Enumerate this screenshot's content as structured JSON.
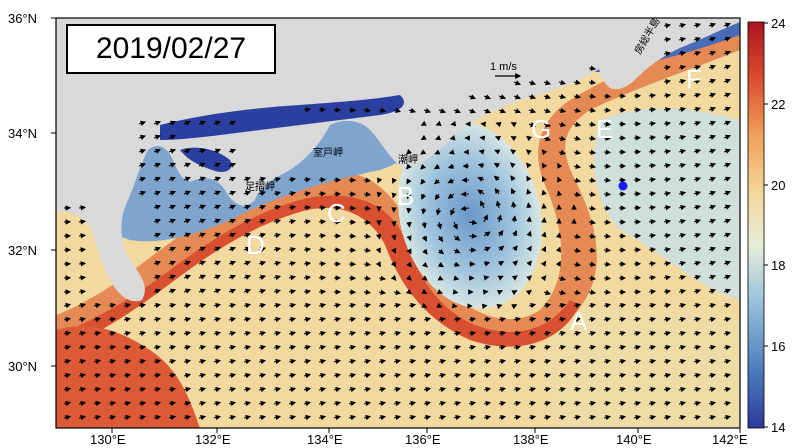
{
  "date": "2019/02/27",
  "axes": {
    "lon_ticks": [
      "130°E",
      "132°E",
      "134°E",
      "136°E",
      "138°E",
      "140°E",
      "142°E"
    ],
    "lat_ticks": [
      "36°N",
      "34°N",
      "32°N",
      "30°N"
    ]
  },
  "colorbar": {
    "ticks": [
      "24",
      "22",
      "20",
      "18",
      "16",
      "14"
    ],
    "min": 14,
    "max": 24,
    "colormap": [
      "#2b3a9a",
      "#4f7fbe",
      "#9ec4dc",
      "#e6edd9",
      "#f3d79a",
      "#f0a05a",
      "#d9482e",
      "#a8161f"
    ]
  },
  "scale": {
    "label": "1 m/s"
  },
  "region_labels": [
    "A",
    "B",
    "C",
    "D",
    "E",
    "F",
    "G"
  ],
  "place_names": [
    "室戸岬",
    "潮岬",
    "足摺岬",
    "房総半島"
  ],
  "marker": {
    "color": "#1a1aff"
  },
  "colors": {
    "land": "#d9d9d9",
    "cold_coast": "#2a3f9f",
    "warm": "#f2c98c",
    "kuroshio": "#de5a35"
  }
}
